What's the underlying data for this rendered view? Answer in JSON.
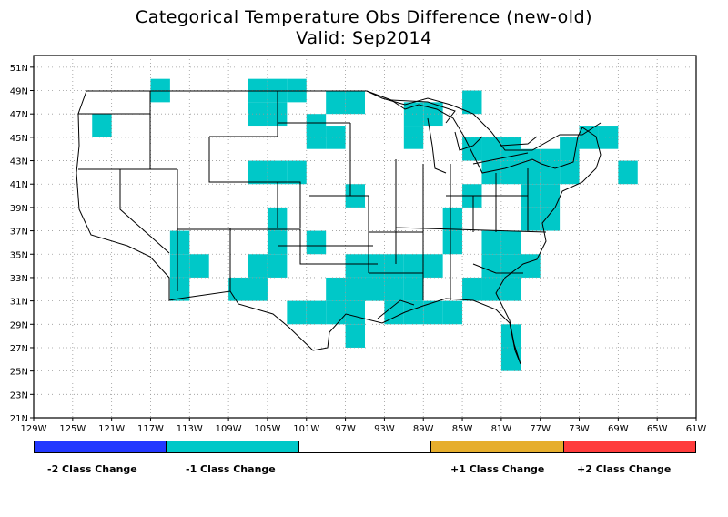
{
  "title": "Categorical Temperature Obs Difference (new-old)",
  "subtitle": "Valid: Sep2014",
  "colors": {
    "minus2": "#2238ff",
    "minus1": "#00c8c8",
    "zero": "#ffffff",
    "plus1": "#e6ae2d",
    "plus2": "#ff3c3c",
    "grid": "#999999",
    "lines": "#000000"
  },
  "legend": [
    {
      "label": "-2 Class Change",
      "color": "#2238ff"
    },
    {
      "label": "-1 Class Change",
      "color": "#00c8c8"
    },
    {
      "label": "",
      "color": "#ffffff"
    },
    {
      "label": "+1 Class Change",
      "color": "#e6ae2d"
    },
    {
      "label": "+2 Class Change",
      "color": "#ff3c3c"
    }
  ],
  "axes": {
    "lon_ticks": [
      "129W",
      "125W",
      "121W",
      "117W",
      "113W",
      "109W",
      "105W",
      "101W",
      "97W",
      "93W",
      "89W",
      "85W",
      "81W",
      "77W",
      "73W",
      "69W",
      "65W",
      "61W"
    ],
    "lat_ticks": [
      "21N",
      "23N",
      "25N",
      "27N",
      "29N",
      "31N",
      "33N",
      "35N",
      "37N",
      "39N",
      "41N",
      "43N",
      "45N",
      "47N",
      "49N",
      "51N"
    ]
  },
  "chart_data": {
    "type": "heatmap",
    "title": "Categorical Temperature Obs Difference (new-old)",
    "subtitle": "Valid: Sep2014",
    "grid_resolution_deg": 2,
    "lon_range": [
      -129,
      -61
    ],
    "lat_range": [
      21,
      52
    ],
    "cell_value_note": "lon/lat give lower-left corner of each 2-degree cell",
    "cells_minus1": [
      [
        -117,
        48
      ],
      [
        -123,
        45
      ],
      [
        -107,
        48
      ],
      [
        -105,
        48
      ],
      [
        -103,
        48
      ],
      [
        -99,
        47
      ],
      [
        -97,
        47
      ],
      [
        -107,
        46
      ],
      [
        -105,
        46
      ],
      [
        -101,
        45
      ],
      [
        -101,
        44
      ],
      [
        -99,
        44
      ],
      [
        -107,
        41
      ],
      [
        -105,
        41
      ],
      [
        -103,
        41
      ],
      [
        -91,
        46
      ],
      [
        -89,
        46
      ],
      [
        -91,
        44
      ],
      [
        -85,
        47
      ],
      [
        -85,
        43
      ],
      [
        -83,
        43
      ],
      [
        -81,
        43
      ],
      [
        -79,
        42
      ],
      [
        -77,
        42
      ],
      [
        -75,
        43
      ],
      [
        -79,
        41
      ],
      [
        -81,
        41
      ],
      [
        -83,
        41
      ],
      [
        -77,
        41
      ],
      [
        -75,
        41
      ],
      [
        -73,
        44
      ],
      [
        -71,
        44
      ],
      [
        -69,
        41
      ],
      [
        -85,
        39
      ],
      [
        -97,
        39
      ],
      [
        -105,
        37
      ],
      [
        -105,
        35
      ],
      [
        -107,
        33
      ],
      [
        -105,
        33
      ],
      [
        -109,
        31
      ],
      [
        -107,
        31
      ],
      [
        -115,
        35
      ],
      [
        -115,
        33
      ],
      [
        -113,
        33
      ],
      [
        -115,
        31
      ],
      [
        -101,
        35
      ],
      [
        -97,
        33
      ],
      [
        -95,
        33
      ],
      [
        -93,
        33
      ],
      [
        -91,
        33
      ],
      [
        -89,
        33
      ],
      [
        -99,
        31
      ],
      [
        -97,
        31
      ],
      [
        -95,
        31
      ],
      [
        -93,
        31
      ],
      [
        -91,
        31
      ],
      [
        -103,
        29
      ],
      [
        -101,
        29
      ],
      [
        -99,
        29
      ],
      [
        -97,
        29
      ],
      [
        -93,
        29
      ],
      [
        -91,
        29
      ],
      [
        -89,
        29
      ],
      [
        -97,
        27
      ],
      [
        -87,
        29
      ],
      [
        -87,
        37
      ],
      [
        -87,
        35
      ],
      [
        -83,
        35
      ],
      [
        -81,
        35
      ],
      [
        -79,
        33
      ],
      [
        -81,
        33
      ],
      [
        -83,
        33
      ],
      [
        -85,
        31
      ],
      [
        -83,
        31
      ],
      [
        -81,
        31
      ],
      [
        -79,
        37
      ],
      [
        -77,
        37
      ],
      [
        -79,
        39
      ],
      [
        -77,
        39
      ],
      [
        -81,
        27
      ],
      [
        -81,
        25
      ]
    ]
  }
}
